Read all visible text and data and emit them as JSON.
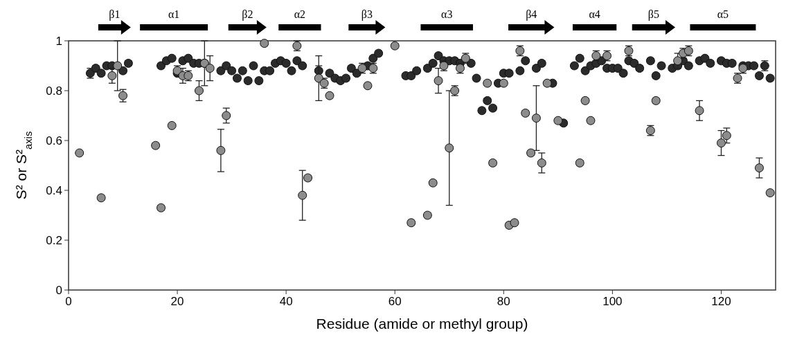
{
  "chart_data": {
    "type": "scatter",
    "xlabel": "Residue (amide or methyl group)",
    "ylabel": "S² or S²$_{axis}$",
    "xlim": [
      0,
      130
    ],
    "xticks": [
      0,
      20,
      40,
      60,
      80,
      100,
      120
    ],
    "ylim": [
      0,
      1
    ],
    "yticks": [
      0,
      0.2,
      0.4,
      0.6,
      0.8,
      1
    ],
    "grid": false,
    "marker": "circle",
    "annotations": [
      "β1",
      "α1",
      "β2",
      "α2",
      "β3",
      "α3",
      "β4",
      "α4",
      "β5",
      "α5"
    ],
    "series": [
      {
        "color": "#2b2b2b",
        "x": [
          4,
          5,
          6,
          7,
          8,
          10,
          11,
          17,
          18,
          19,
          20,
          21,
          22,
          23,
          24,
          25,
          28,
          29,
          30,
          31,
          32,
          33,
          34,
          35,
          36,
          37,
          38,
          39,
          40,
          41,
          42,
          43,
          46,
          48,
          49,
          50,
          51,
          52,
          53,
          55,
          56,
          57,
          62,
          63,
          64,
          66,
          67,
          68,
          69,
          70,
          71,
          72,
          74,
          75,
          76,
          77,
          78,
          79,
          80,
          81,
          83,
          84,
          86,
          87,
          89,
          91,
          93,
          94,
          95,
          96,
          97,
          98,
          99,
          100,
          101,
          102,
          103,
          104,
          105,
          107,
          108,
          109,
          111,
          112,
          113,
          114,
          116,
          117,
          118,
          120,
          121,
          122,
          124,
          125,
          126,
          127,
          128,
          129
        ],
        "values": [
          0.87,
          0.89,
          0.87,
          0.9,
          0.9,
          0.88,
          0.91,
          0.9,
          0.92,
          0.93,
          0.87,
          0.92,
          0.93,
          0.91,
          0.91,
          0.91,
          0.88,
          0.9,
          0.88,
          0.85,
          0.88,
          0.84,
          0.9,
          0.84,
          0.88,
          0.88,
          0.91,
          0.92,
          0.91,
          0.88,
          0.92,
          0.9,
          0.88,
          0.87,
          0.85,
          0.84,
          0.85,
          0.89,
          0.87,
          0.9,
          0.93,
          0.95,
          0.86,
          0.86,
          0.88,
          0.89,
          0.91,
          0.94,
          0.92,
          0.92,
          0.92,
          0.91,
          0.91,
          0.85,
          0.72,
          0.76,
          0.73,
          0.83,
          0.87,
          0.87,
          0.88,
          0.92,
          0.89,
          0.91,
          0.83,
          0.67,
          0.9,
          0.93,
          0.88,
          0.9,
          0.91,
          0.92,
          0.89,
          0.89,
          0.89,
          0.87,
          0.92,
          0.91,
          0.89,
          0.92,
          0.86,
          0.9,
          0.89,
          0.9,
          0.92,
          0.9,
          0.92,
          0.93,
          0.91,
          0.92,
          0.91,
          0.91,
          0.9,
          0.9,
          0.9,
          0.86,
          0.9,
          0.85
        ],
        "errors": [
          0.02,
          0.01,
          0.01,
          0.01,
          0.01,
          0.01,
          0.01,
          0.01,
          0.01,
          0.01,
          0.01,
          0.01,
          0.01,
          0.01,
          0.01,
          0.01,
          0.01,
          0.01,
          0.01,
          0.01,
          0.01,
          0.01,
          0.01,
          0.01,
          0.01,
          0.01,
          0.01,
          0.01,
          0.01,
          0.01,
          0.01,
          0.01,
          0.02,
          0.01,
          0.01,
          0.01,
          0.01,
          0.01,
          0.01,
          0.01,
          0.01,
          0.01,
          0.01,
          0.01,
          0.01,
          0.01,
          0.01,
          0.01,
          0.01,
          0.01,
          0.01,
          0.01,
          0.01,
          0.01,
          0.01,
          0.01,
          0.01,
          0.01,
          0.01,
          0.01,
          0.01,
          0.01,
          0.01,
          0.01,
          0.01,
          0.01,
          0.01,
          0.01,
          0.01,
          0.01,
          0.01,
          0.01,
          0.01,
          0.01,
          0.01,
          0.01,
          0.01,
          0.01,
          0.01,
          0.01,
          0.01,
          0.01,
          0.01,
          0.01,
          0.01,
          0.01,
          0.01,
          0.01,
          0.01,
          0.01,
          0.01,
          0.01,
          0.01,
          0.01,
          0.01,
          0.01,
          0.02,
          0.01
        ]
      },
      {
        "color": "#8c8c8c",
        "x": [
          2,
          6,
          8,
          9,
          10,
          16,
          17,
          19,
          20,
          21,
          22,
          24,
          25,
          26,
          28,
          29,
          36,
          42,
          43,
          44,
          46,
          47,
          48,
          54,
          55,
          56,
          60,
          63,
          66,
          67,
          68,
          69,
          70,
          71,
          72,
          73,
          77,
          78,
          80,
          81,
          82,
          83,
          84,
          85,
          86,
          87,
          88,
          90,
          94,
          95,
          96,
          97,
          99,
          103,
          107,
          108,
          112,
          113,
          114,
          116,
          120,
          121,
          123,
          124,
          127,
          129
        ],
        "values": [
          0.55,
          0.37,
          0.86,
          0.9,
          0.78,
          0.58,
          0.33,
          0.66,
          0.88,
          0.86,
          0.86,
          0.8,
          0.91,
          0.89,
          0.56,
          0.7,
          0.99,
          0.98,
          0.38,
          0.45,
          0.85,
          0.83,
          0.78,
          0.89,
          0.82,
          0.89,
          0.98,
          0.27,
          0.3,
          0.43,
          0.84,
          0.9,
          0.57,
          0.8,
          0.89,
          0.93,
          0.83,
          0.51,
          0.83,
          0.26,
          0.27,
          0.96,
          0.71,
          0.55,
          0.69,
          0.51,
          0.83,
          0.68,
          0.51,
          0.76,
          0.68,
          0.94,
          0.94,
          0.96,
          0.64,
          0.76,
          0.92,
          0.95,
          0.96,
          0.72,
          0.59,
          0.62,
          0.85,
          0.89,
          0.49,
          0.39
        ],
        "errors": [
          null,
          0.01,
          0.03,
          0.1,
          0.025,
          0.01,
          0.01,
          null,
          0.02,
          0.03,
          0.02,
          0.04,
          0.09,
          0.05,
          0.085,
          0.03,
          0.01,
          0.02,
          0.1,
          0.01,
          0.09,
          0.02,
          0.01,
          0.02,
          0.01,
          0.02,
          0.01,
          0.01,
          0.01,
          0.01,
          0.05,
          0.02,
          0.23,
          0.02,
          0.02,
          0.02,
          0.01,
          0.01,
          0.01,
          0.01,
          0.01,
          0.02,
          0.01,
          0.01,
          0.13,
          0.04,
          0.01,
          0.01,
          0.01,
          0.01,
          0.01,
          0.02,
          0.02,
          0.02,
          0.02,
          0.01,
          0.03,
          0.02,
          0.02,
          0.04,
          0.05,
          0.03,
          0.02,
          0.02,
          0.04,
          0.01
        ]
      }
    ]
  }
}
